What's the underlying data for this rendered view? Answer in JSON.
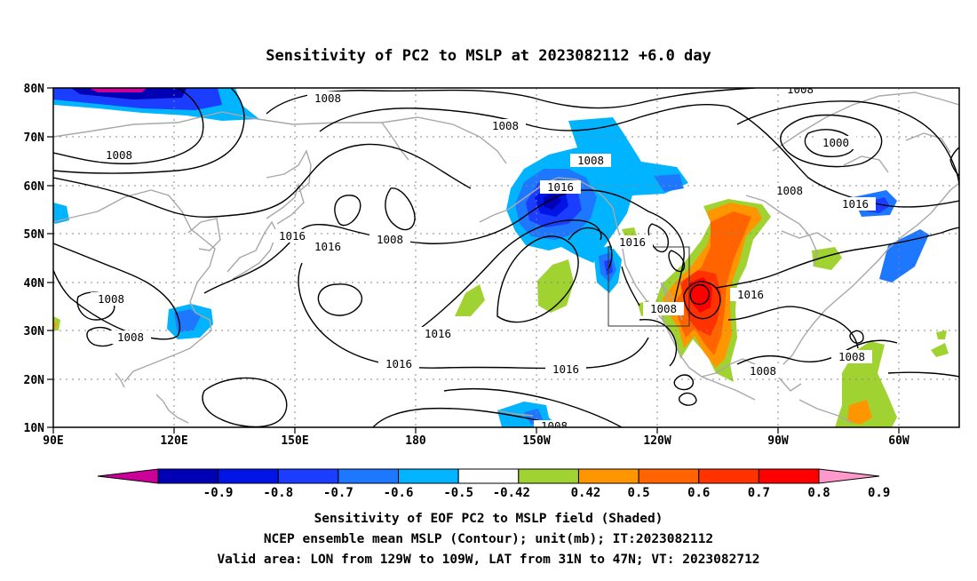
{
  "title": "Sensitivity of PC2 to MSLP at 2023082112 +6.0 day",
  "lat_ticks": [
    "80N",
    "70N",
    "60N",
    "50N",
    "40N",
    "30N",
    "20N",
    "10N"
  ],
  "lon_ticks": [
    "90E",
    "120E",
    "150E",
    "180",
    "150W",
    "120W",
    "90W",
    "60W"
  ],
  "contour_labels": {
    "c1008_nw": "1008",
    "c1008_n": "1008",
    "c1008_w": "1008",
    "c1008_ne": "1008",
    "c1000": "1000",
    "c1008_e": "1008",
    "c1016_e": "1016",
    "c1008_jpn": "1008",
    "c1016_a": "1016",
    "c1016_b": "1016",
    "c1016_gulf": "1016",
    "c1016_c": "1016",
    "c1008_chn1": "1008",
    "c1008_chn2": "1008",
    "c1016_d": "1016",
    "c1016_s": "1016",
    "c1016_s2": "1016",
    "c1016_box": "1016",
    "c1008_sw": "1008",
    "c1008_gulf": "1008",
    "c1008_atl": "1008",
    "c1016_mid": "1016",
    "c1008_bot": "1008"
  },
  "colorbar": {
    "labels": [
      "-0.9",
      "-0.8",
      "-0.7",
      "-0.6",
      "-0.5",
      "-0.42",
      "0.42",
      "0.5",
      "0.6",
      "0.7",
      "0.8",
      "0.9"
    ],
    "colors": [
      "#cc0099",
      "#0000b4",
      "#0014e6",
      "#1a3dff",
      "#1e78ff",
      "#00b4ff",
      "#ffffff",
      "#a0d232",
      "#ff9600",
      "#ff6400",
      "#ff3200",
      "#ff0000",
      "#ff99cc"
    ]
  },
  "footer": {
    "line1": "Sensitivity of EOF PC2 to MSLP field (Shaded)",
    "line2": "NCEP ensemble mean MSLP (Contour); unit(mb); IT:2023082112",
    "line3": "Valid area: LON from 129W to 109W, LAT from 31N to 47N; VT: 2023082712"
  }
}
